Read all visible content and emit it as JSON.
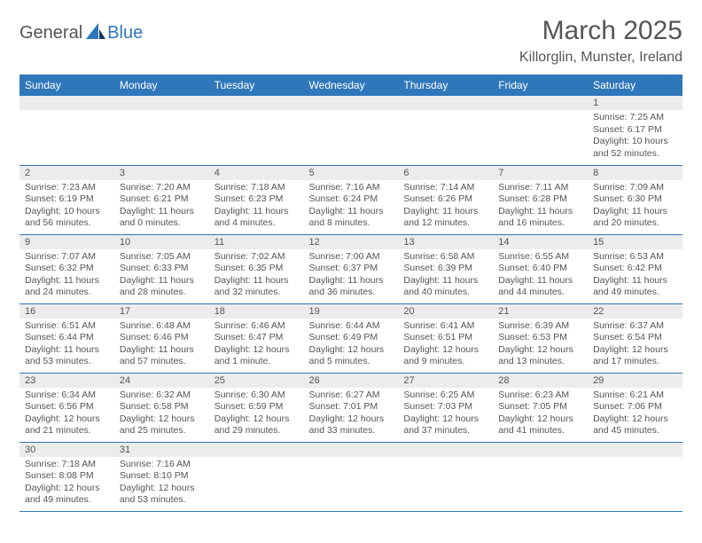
{
  "logo": {
    "general": "General",
    "blue": "Blue"
  },
  "title": "March 2025",
  "location": "Killorglin, Munster, Ireland",
  "columns": [
    "Sunday",
    "Monday",
    "Tuesday",
    "Wednesday",
    "Thursday",
    "Friday",
    "Saturday"
  ],
  "colors": {
    "header_bg": "#2f77bb",
    "header_text": "#ffffff",
    "daynum_bg": "#ececec",
    "border": "#2f77bb",
    "text": "#555555"
  },
  "weeks": [
    [
      {
        "n": "",
        "sr": "",
        "ss": "",
        "dl": ""
      },
      {
        "n": "",
        "sr": "",
        "ss": "",
        "dl": ""
      },
      {
        "n": "",
        "sr": "",
        "ss": "",
        "dl": ""
      },
      {
        "n": "",
        "sr": "",
        "ss": "",
        "dl": ""
      },
      {
        "n": "",
        "sr": "",
        "ss": "",
        "dl": ""
      },
      {
        "n": "",
        "sr": "",
        "ss": "",
        "dl": ""
      },
      {
        "n": "1",
        "sr": "Sunrise: 7:25 AM",
        "ss": "Sunset: 6:17 PM",
        "dl": "Daylight: 10 hours and 52 minutes."
      }
    ],
    [
      {
        "n": "2",
        "sr": "Sunrise: 7:23 AM",
        "ss": "Sunset: 6:19 PM",
        "dl": "Daylight: 10 hours and 56 minutes."
      },
      {
        "n": "3",
        "sr": "Sunrise: 7:20 AM",
        "ss": "Sunset: 6:21 PM",
        "dl": "Daylight: 11 hours and 0 minutes."
      },
      {
        "n": "4",
        "sr": "Sunrise: 7:18 AM",
        "ss": "Sunset: 6:23 PM",
        "dl": "Daylight: 11 hours and 4 minutes."
      },
      {
        "n": "5",
        "sr": "Sunrise: 7:16 AM",
        "ss": "Sunset: 6:24 PM",
        "dl": "Daylight: 11 hours and 8 minutes."
      },
      {
        "n": "6",
        "sr": "Sunrise: 7:14 AM",
        "ss": "Sunset: 6:26 PM",
        "dl": "Daylight: 11 hours and 12 minutes."
      },
      {
        "n": "7",
        "sr": "Sunrise: 7:11 AM",
        "ss": "Sunset: 6:28 PM",
        "dl": "Daylight: 11 hours and 16 minutes."
      },
      {
        "n": "8",
        "sr": "Sunrise: 7:09 AM",
        "ss": "Sunset: 6:30 PM",
        "dl": "Daylight: 11 hours and 20 minutes."
      }
    ],
    [
      {
        "n": "9",
        "sr": "Sunrise: 7:07 AM",
        "ss": "Sunset: 6:32 PM",
        "dl": "Daylight: 11 hours and 24 minutes."
      },
      {
        "n": "10",
        "sr": "Sunrise: 7:05 AM",
        "ss": "Sunset: 6:33 PM",
        "dl": "Daylight: 11 hours and 28 minutes."
      },
      {
        "n": "11",
        "sr": "Sunrise: 7:02 AM",
        "ss": "Sunset: 6:35 PM",
        "dl": "Daylight: 11 hours and 32 minutes."
      },
      {
        "n": "12",
        "sr": "Sunrise: 7:00 AM",
        "ss": "Sunset: 6:37 PM",
        "dl": "Daylight: 11 hours and 36 minutes."
      },
      {
        "n": "13",
        "sr": "Sunrise: 6:58 AM",
        "ss": "Sunset: 6:39 PM",
        "dl": "Daylight: 11 hours and 40 minutes."
      },
      {
        "n": "14",
        "sr": "Sunrise: 6:55 AM",
        "ss": "Sunset: 6:40 PM",
        "dl": "Daylight: 11 hours and 44 minutes."
      },
      {
        "n": "15",
        "sr": "Sunrise: 6:53 AM",
        "ss": "Sunset: 6:42 PM",
        "dl": "Daylight: 11 hours and 49 minutes."
      }
    ],
    [
      {
        "n": "16",
        "sr": "Sunrise: 6:51 AM",
        "ss": "Sunset: 6:44 PM",
        "dl": "Daylight: 11 hours and 53 minutes."
      },
      {
        "n": "17",
        "sr": "Sunrise: 6:48 AM",
        "ss": "Sunset: 6:46 PM",
        "dl": "Daylight: 11 hours and 57 minutes."
      },
      {
        "n": "18",
        "sr": "Sunrise: 6:46 AM",
        "ss": "Sunset: 6:47 PM",
        "dl": "Daylight: 12 hours and 1 minute."
      },
      {
        "n": "19",
        "sr": "Sunrise: 6:44 AM",
        "ss": "Sunset: 6:49 PM",
        "dl": "Daylight: 12 hours and 5 minutes."
      },
      {
        "n": "20",
        "sr": "Sunrise: 6:41 AM",
        "ss": "Sunset: 6:51 PM",
        "dl": "Daylight: 12 hours and 9 minutes."
      },
      {
        "n": "21",
        "sr": "Sunrise: 6:39 AM",
        "ss": "Sunset: 6:53 PM",
        "dl": "Daylight: 12 hours and 13 minutes."
      },
      {
        "n": "22",
        "sr": "Sunrise: 6:37 AM",
        "ss": "Sunset: 6:54 PM",
        "dl": "Daylight: 12 hours and 17 minutes."
      }
    ],
    [
      {
        "n": "23",
        "sr": "Sunrise: 6:34 AM",
        "ss": "Sunset: 6:56 PM",
        "dl": "Daylight: 12 hours and 21 minutes."
      },
      {
        "n": "24",
        "sr": "Sunrise: 6:32 AM",
        "ss": "Sunset: 6:58 PM",
        "dl": "Daylight: 12 hours and 25 minutes."
      },
      {
        "n": "25",
        "sr": "Sunrise: 6:30 AM",
        "ss": "Sunset: 6:59 PM",
        "dl": "Daylight: 12 hours and 29 minutes."
      },
      {
        "n": "26",
        "sr": "Sunrise: 6:27 AM",
        "ss": "Sunset: 7:01 PM",
        "dl": "Daylight: 12 hours and 33 minutes."
      },
      {
        "n": "27",
        "sr": "Sunrise: 6:25 AM",
        "ss": "Sunset: 7:03 PM",
        "dl": "Daylight: 12 hours and 37 minutes."
      },
      {
        "n": "28",
        "sr": "Sunrise: 6:23 AM",
        "ss": "Sunset: 7:05 PM",
        "dl": "Daylight: 12 hours and 41 minutes."
      },
      {
        "n": "29",
        "sr": "Sunrise: 6:21 AM",
        "ss": "Sunset: 7:06 PM",
        "dl": "Daylight: 12 hours and 45 minutes."
      }
    ],
    [
      {
        "n": "30",
        "sr": "Sunrise: 7:18 AM",
        "ss": "Sunset: 8:08 PM",
        "dl": "Daylight: 12 hours and 49 minutes."
      },
      {
        "n": "31",
        "sr": "Sunrise: 7:16 AM",
        "ss": "Sunset: 8:10 PM",
        "dl": "Daylight: 12 hours and 53 minutes."
      },
      {
        "n": "",
        "sr": "",
        "ss": "",
        "dl": ""
      },
      {
        "n": "",
        "sr": "",
        "ss": "",
        "dl": ""
      },
      {
        "n": "",
        "sr": "",
        "ss": "",
        "dl": ""
      },
      {
        "n": "",
        "sr": "",
        "ss": "",
        "dl": ""
      },
      {
        "n": "",
        "sr": "",
        "ss": "",
        "dl": ""
      }
    ]
  ]
}
